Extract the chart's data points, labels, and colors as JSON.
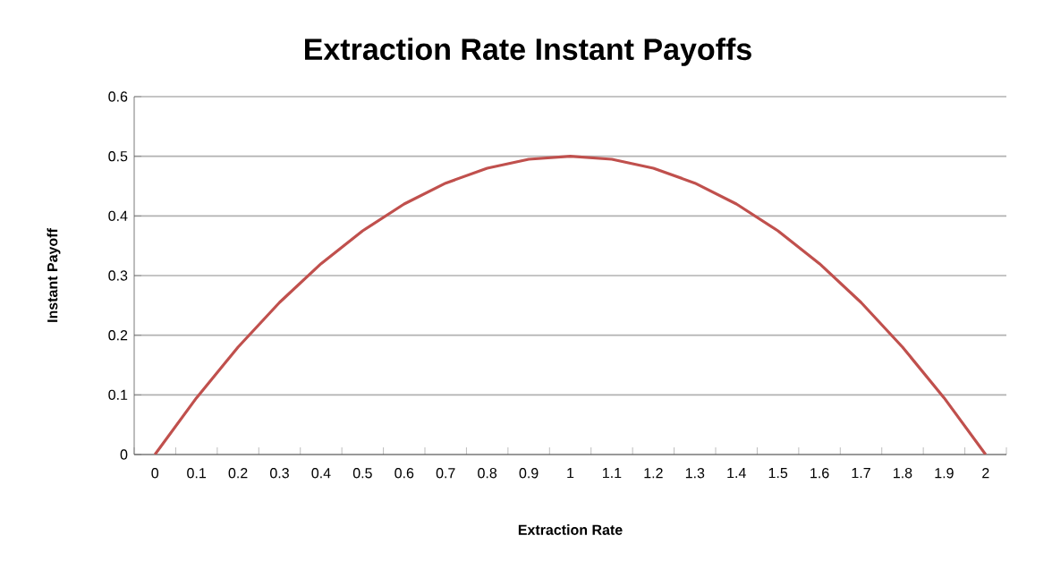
{
  "chart_data": {
    "type": "line",
    "title": "Extraction Rate Instant Payoffs",
    "xlabel": "Extraction Rate",
    "ylabel": "Instant Payoff",
    "categories": [
      "0",
      "0.1",
      "0.2",
      "0.3",
      "0.4",
      "0.5",
      "0.6",
      "0.7",
      "0.8",
      "0.9",
      "1",
      "1.1",
      "1.2",
      "1.3",
      "1.4",
      "1.5",
      "1.6",
      "1.7",
      "1.8",
      "1.9",
      "2"
    ],
    "series": [
      {
        "color": "#c0504d",
        "values": [
          0,
          0.095,
          0.18,
          0.255,
          0.32,
          0.375,
          0.42,
          0.455,
          0.48,
          0.495,
          0.5,
          0.495,
          0.48,
          0.455,
          0.42,
          0.375,
          0.32,
          0.255,
          0.18,
          0.095,
          0
        ]
      }
    ],
    "ylim": [
      0,
      0.6
    ],
    "yticks": [
      0,
      0.1,
      0.2,
      0.3,
      0.4,
      0.5,
      0.6
    ],
    "grid": "y",
    "marker": "none",
    "line_style": "solid"
  }
}
